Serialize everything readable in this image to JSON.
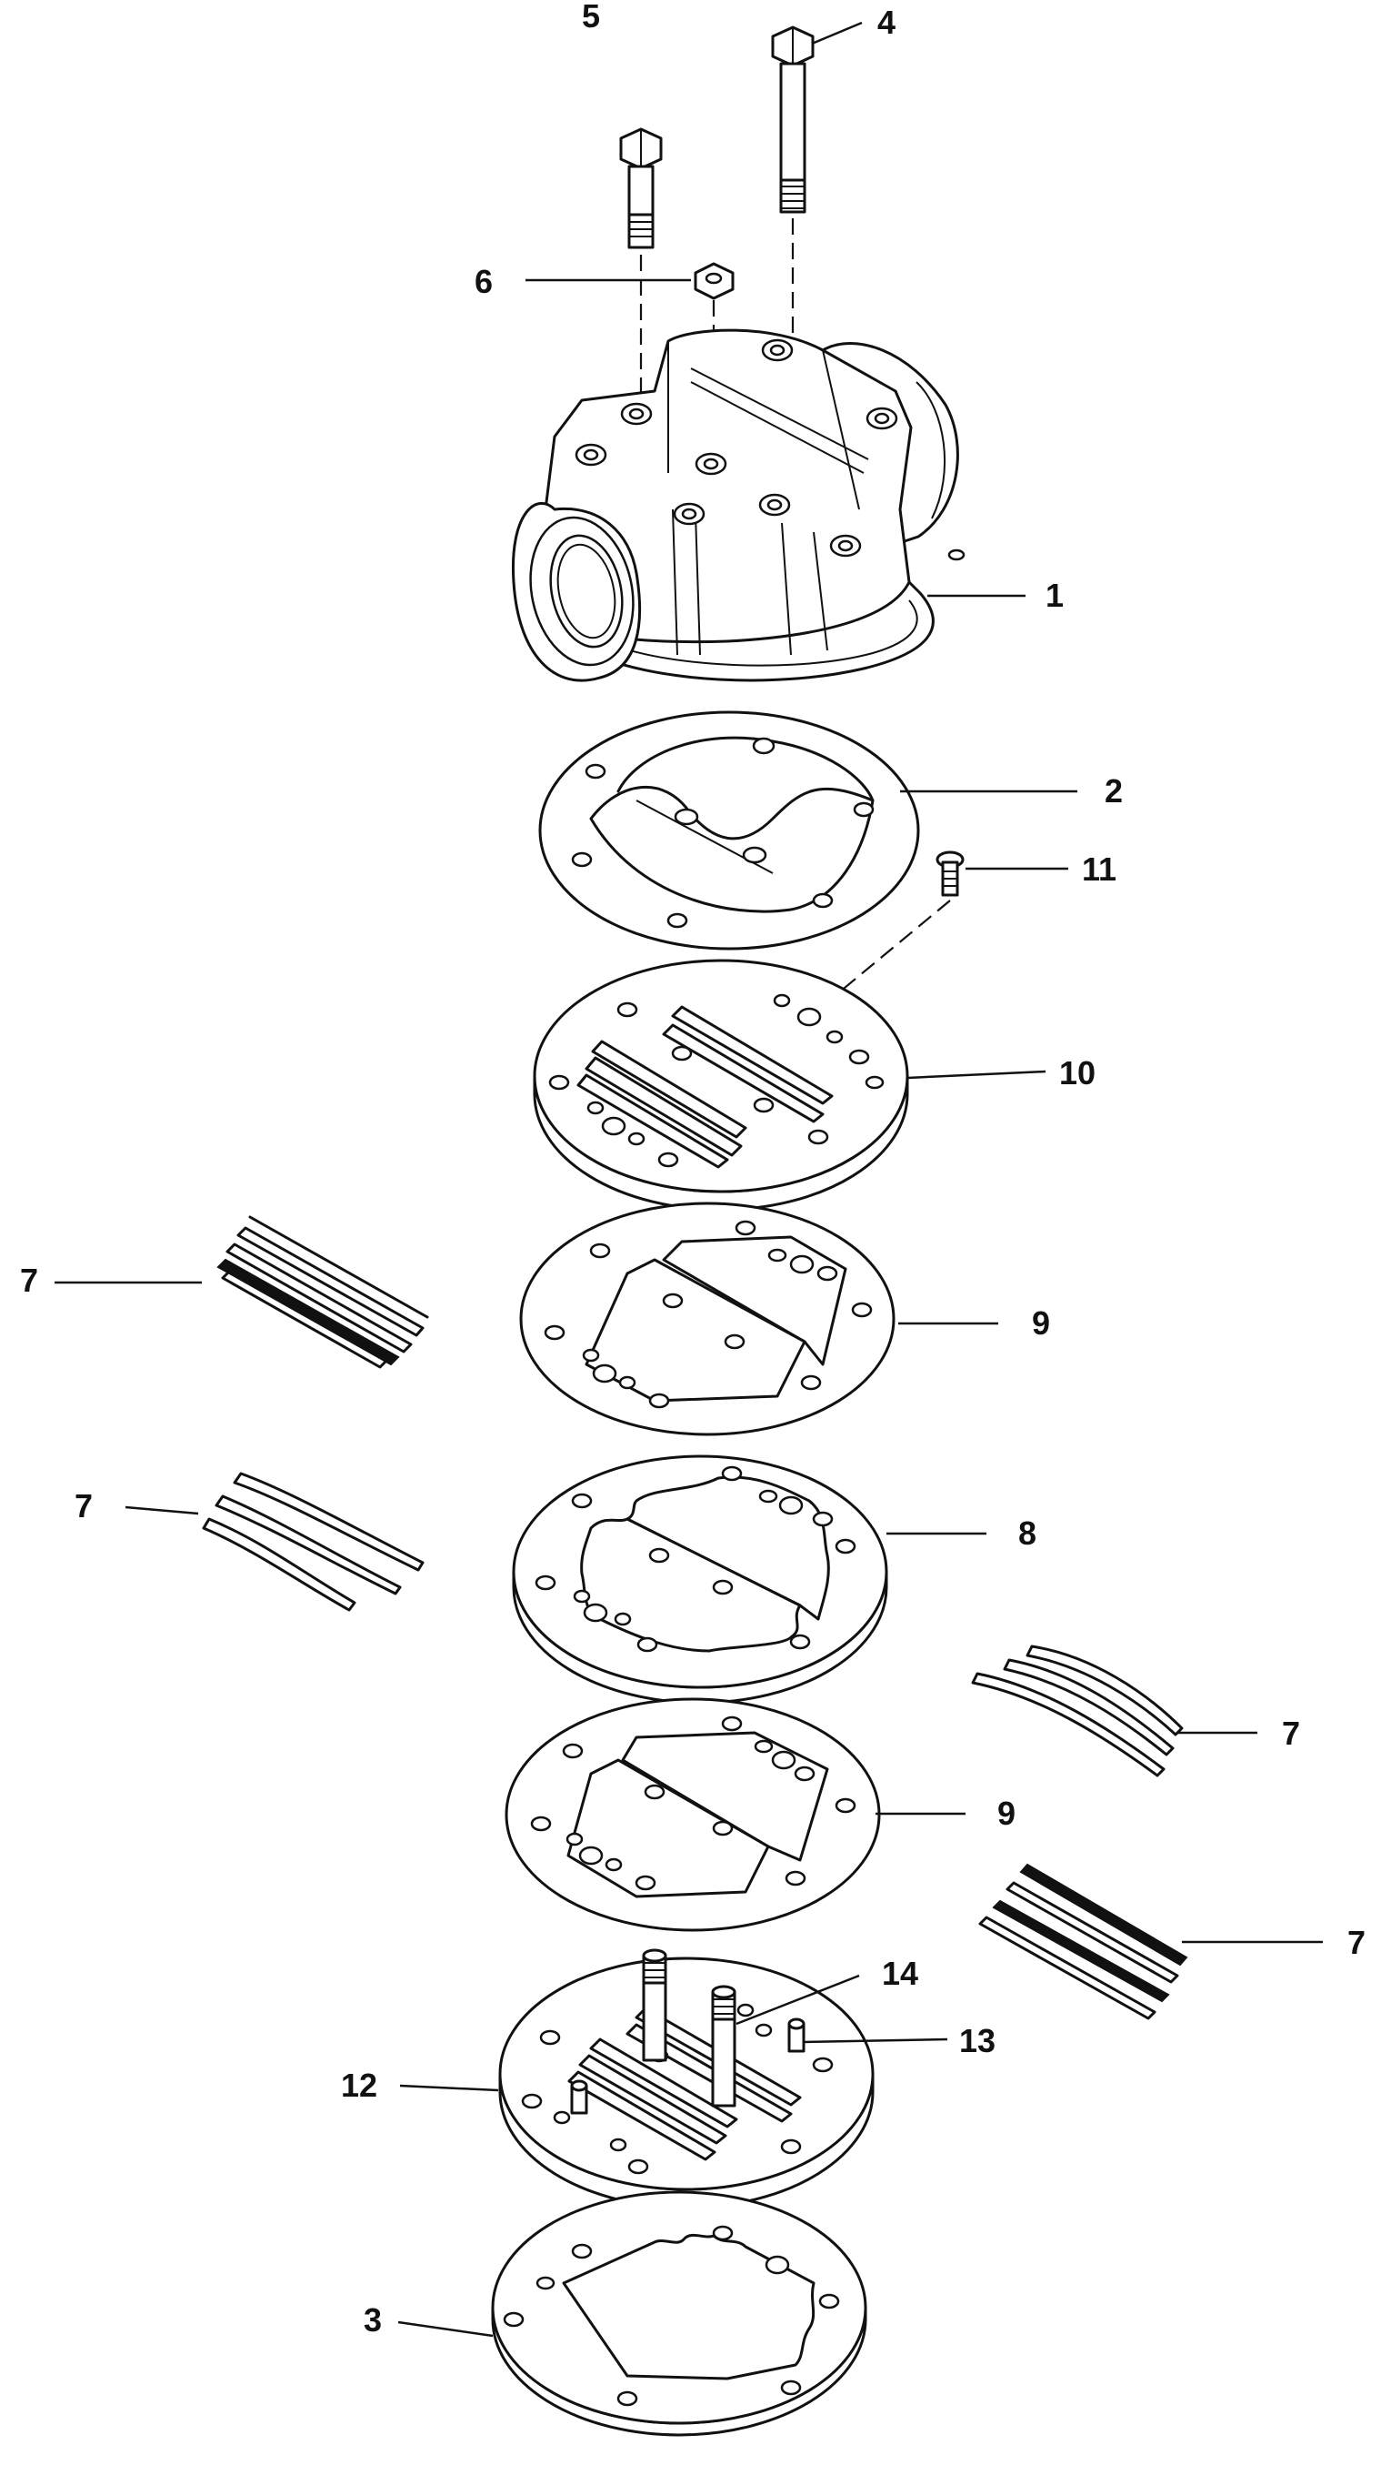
{
  "callouts": {
    "c1": "1",
    "c2": "2",
    "c3": "3",
    "c4": "4",
    "c5": "5",
    "c6": "6",
    "c7a": "7",
    "c7b": "7",
    "c7c": "7",
    "c7d": "7",
    "c8": "8",
    "c9a": "9",
    "c9b": "9",
    "c10": "10",
    "c11": "11",
    "c12": "12",
    "c13": "13",
    "c14": "14"
  }
}
